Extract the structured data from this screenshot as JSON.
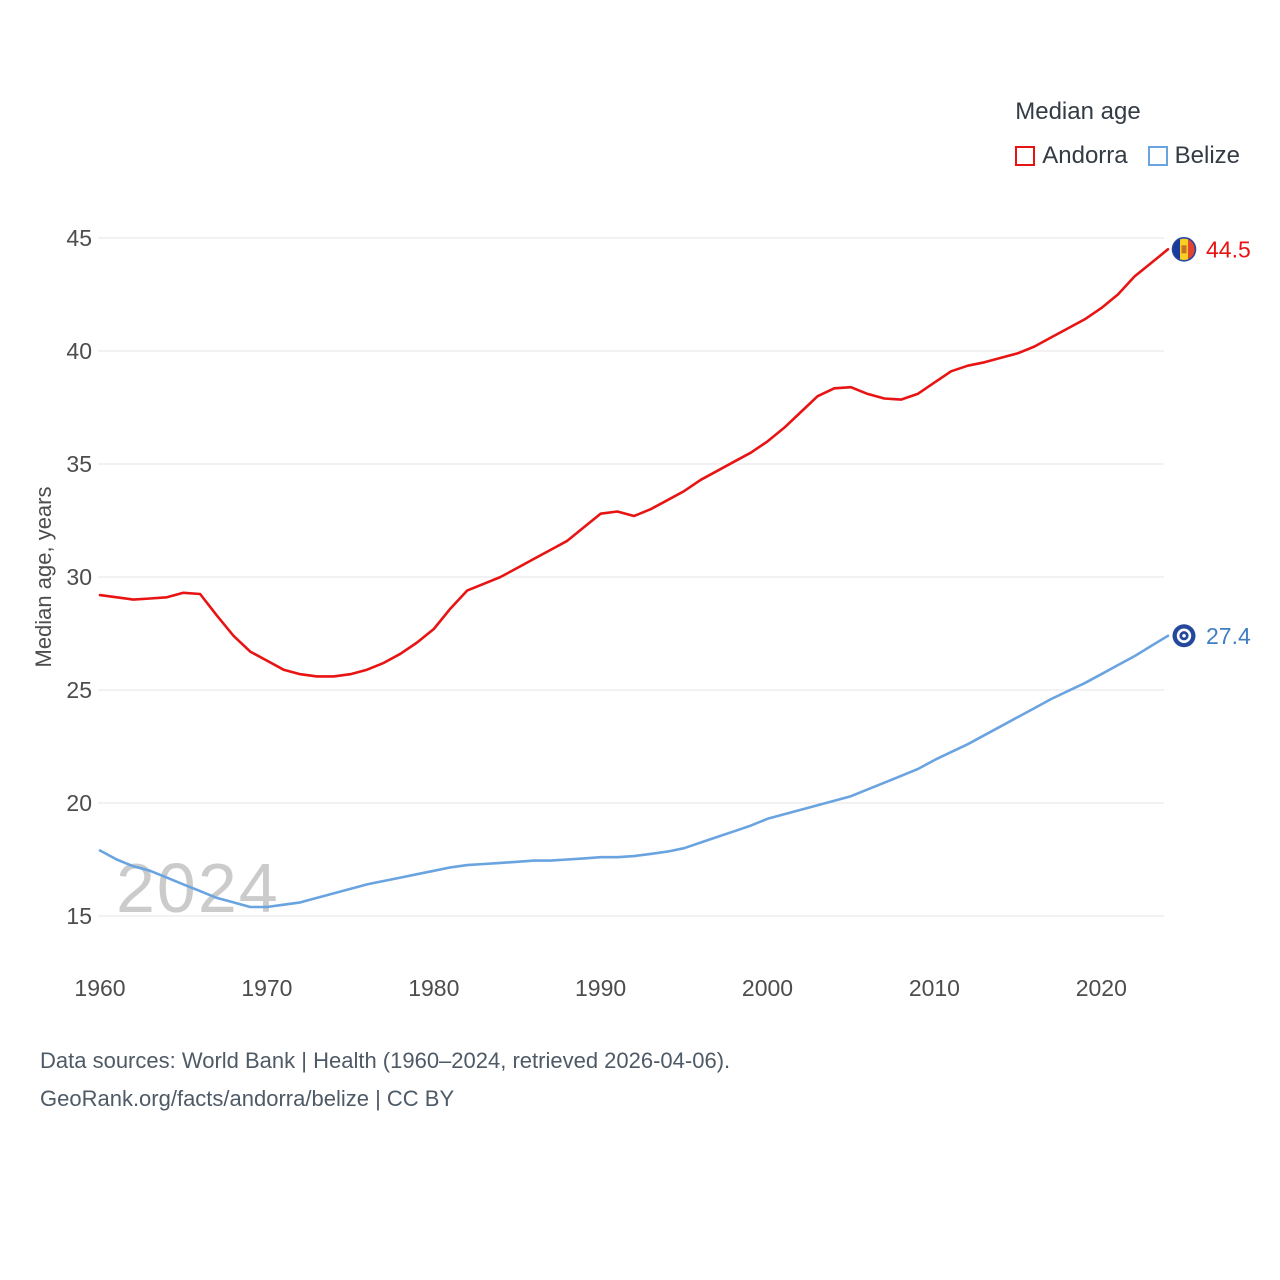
{
  "legend": {
    "title": "Median age",
    "items": [
      {
        "label": "Andorra"
      },
      {
        "label": "Belize"
      }
    ]
  },
  "footer": {
    "line1": "Data sources: World Bank | Health (1960–2024, retrieved 2026-04-06).",
    "line2": "GeoRank.org/facts/andorra/belize | CC BY"
  },
  "chart_data": {
    "type": "line",
    "title": "Median age",
    "ylabel": "Median age, years",
    "xlabel": "",
    "xlim": [
      1960,
      2024
    ],
    "x_ticks": [
      1960,
      1970,
      1980,
      1990,
      2000,
      2010,
      2020
    ],
    "y_ticks": [
      15,
      20,
      25,
      30,
      35,
      40,
      45
    ],
    "grid": "horizontal",
    "legend_position": "top-right",
    "watermark": "2024",
    "series": [
      {
        "name": "Andorra",
        "color": "#e81414",
        "label_color": "#e81414",
        "end_label": "44.5",
        "flag": "andorra",
        "values": [
          29.2,
          29.1,
          29.0,
          29.05,
          29.1,
          29.3,
          29.25,
          28.3,
          27.4,
          26.7,
          26.3,
          25.9,
          25.7,
          25.6,
          25.6,
          25.7,
          25.9,
          26.2,
          26.6,
          27.1,
          27.7,
          28.6,
          29.4,
          29.7,
          30.0,
          30.4,
          30.8,
          31.2,
          31.6,
          32.2,
          32.8,
          32.9,
          32.7,
          33.0,
          33.4,
          33.8,
          34.3,
          34.7,
          35.1,
          35.5,
          36.0,
          36.6,
          37.3,
          38.0,
          38.35,
          38.4,
          38.1,
          37.9,
          37.85,
          38.1,
          38.6,
          39.1,
          39.35,
          39.5,
          39.7,
          39.9,
          40.2,
          40.6,
          41.0,
          41.4,
          41.9,
          42.5,
          43.3,
          43.9,
          44.5
        ]
      },
      {
        "name": "Belize",
        "color": "#6aa4e0",
        "label_color": "#3f7fc1",
        "end_label": "27.4",
        "flag": "belize",
        "values": [
          17.9,
          17.5,
          17.2,
          17.0,
          16.7,
          16.4,
          16.1,
          15.8,
          15.6,
          15.4,
          15.4,
          15.5,
          15.6,
          15.8,
          16.0,
          16.2,
          16.4,
          16.55,
          16.7,
          16.85,
          17.0,
          17.15,
          17.25,
          17.3,
          17.35,
          17.4,
          17.45,
          17.45,
          17.5,
          17.55,
          17.6,
          17.6,
          17.65,
          17.75,
          17.85,
          18.0,
          18.25,
          18.5,
          18.75,
          19.0,
          19.3,
          19.5,
          19.7,
          19.9,
          20.1,
          20.3,
          20.6,
          20.9,
          21.2,
          21.5,
          21.9,
          22.25,
          22.6,
          23.0,
          23.4,
          23.8,
          24.2,
          24.6,
          24.95,
          25.3,
          25.7,
          26.1,
          26.5,
          26.95,
          27.4
        ]
      }
    ]
  }
}
